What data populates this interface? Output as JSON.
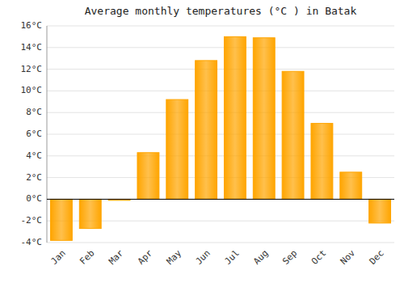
{
  "chart_data": {
    "type": "bar",
    "title": "Average monthly temperatures (°C ) in Batak",
    "categories": [
      "Jan",
      "Feb",
      "Mar",
      "Apr",
      "May",
      "Jun",
      "Jul",
      "Aug",
      "Sep",
      "Oct",
      "Nov",
      "Dec"
    ],
    "values": [
      -3.8,
      -2.7,
      -0.1,
      4.3,
      9.2,
      12.8,
      15.0,
      14.9,
      11.8,
      7.0,
      2.5,
      -2.2
    ],
    "color": "#FFA500",
    "ylim": [
      -4,
      16
    ],
    "yticks": [
      {
        "value": -4,
        "label": "-4°C"
      },
      {
        "value": -2,
        "label": "-2°C"
      },
      {
        "value": 0,
        "label": "0°C"
      },
      {
        "value": 2,
        "label": "2°C"
      },
      {
        "value": 4,
        "label": "4°C"
      },
      {
        "value": 6,
        "label": "6°C"
      },
      {
        "value": 8,
        "label": "8°C"
      },
      {
        "value": 10,
        "label": "10°C"
      },
      {
        "value": 12,
        "label": "12°C"
      },
      {
        "value": 14,
        "label": "14°C"
      },
      {
        "value": 16,
        "label": "16°C"
      }
    ],
    "grid": true
  }
}
